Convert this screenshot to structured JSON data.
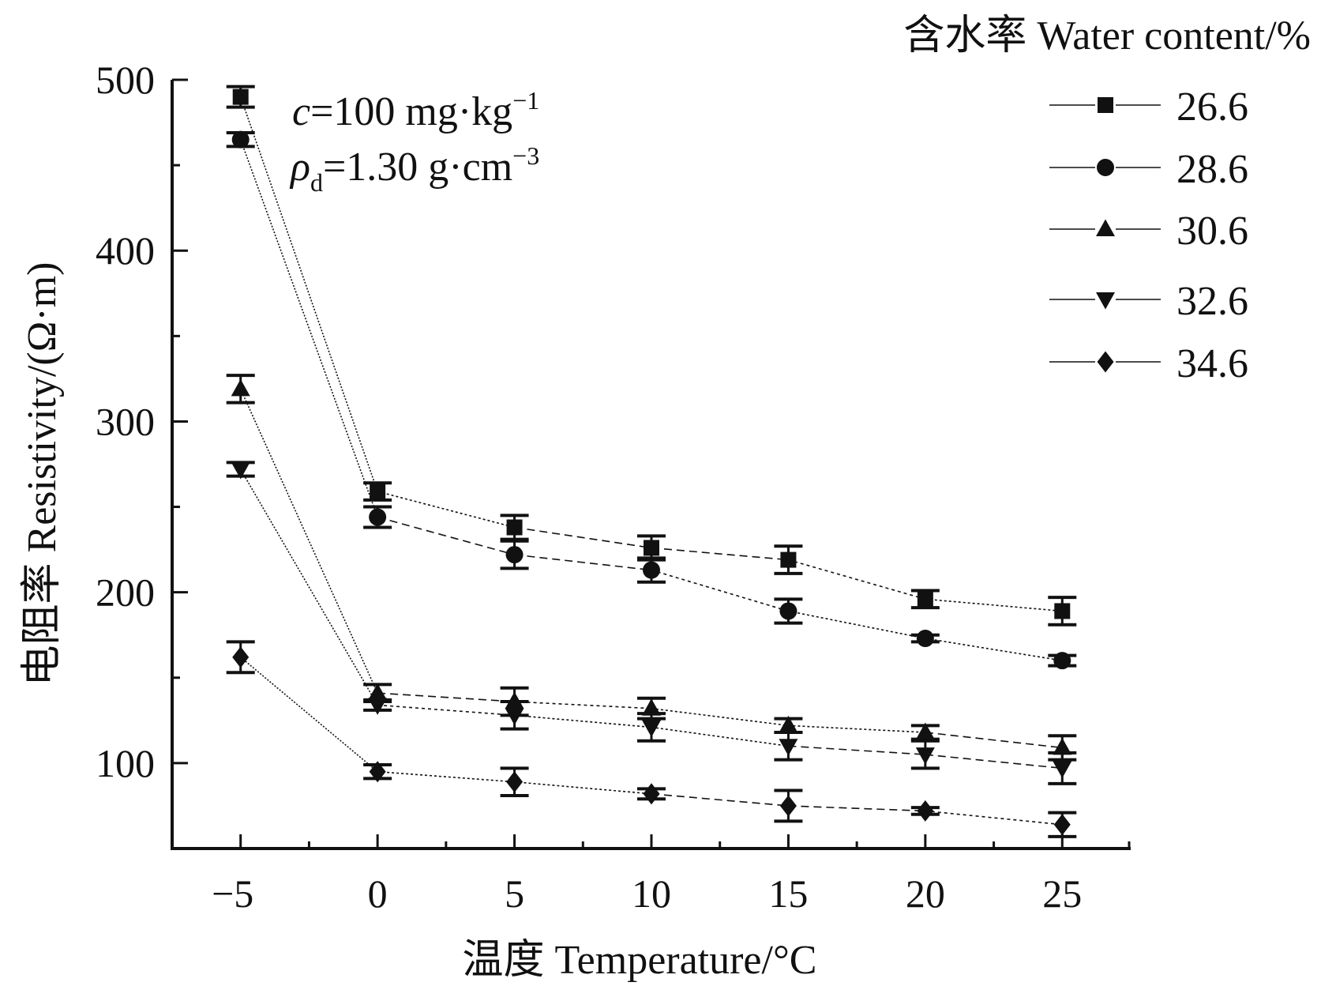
{
  "chart_data": {
    "type": "line",
    "title": "",
    "xlabel": "温度 Temperature/°C",
    "ylabel": "电阻率 Resistivity/(Ω·m)",
    "xlim": [
      -7.5,
      27.5
    ],
    "ylim": [
      50,
      500
    ],
    "x": [
      -5,
      0,
      5,
      10,
      15,
      20,
      25
    ],
    "x_ticks": [
      -5,
      0,
      5,
      10,
      15,
      20,
      25
    ],
    "x_tick_labels": [
      "−5",
      "0",
      "5",
      "10",
      "15",
      "20",
      "25"
    ],
    "y_ticks": [
      100,
      200,
      300,
      400,
      500
    ],
    "y_tick_labels": [
      "100",
      "200",
      "300",
      "400",
      "500"
    ],
    "grid": false,
    "legend": {
      "title": "含水率 Water content/%",
      "placement": "top-right"
    },
    "annotations": {
      "line1": {
        "var": "c",
        "text": "=100 mg·kg",
        "sup": "−1"
      },
      "line2": {
        "var": "ρ",
        "sub": "d",
        "text": "=1.30 g·cm",
        "sup": "−3"
      }
    },
    "series": [
      {
        "name": "26.6",
        "marker": "square",
        "values": [
          490,
          259,
          238,
          226,
          219,
          196,
          189
        ],
        "errors": [
          6,
          5,
          7,
          7,
          8,
          5,
          8
        ]
      },
      {
        "name": "28.6",
        "marker": "circle",
        "values": [
          465,
          244,
          222,
          213,
          189,
          173,
          160
        ],
        "errors": [
          4,
          6,
          8,
          7,
          7,
          2,
          3
        ]
      },
      {
        "name": "30.6",
        "marker": "triangle-up",
        "values": [
          319,
          141,
          136,
          132,
          122,
          118,
          109
        ],
        "errors": [
          8,
          5,
          8,
          6,
          4,
          4,
          7
        ]
      },
      {
        "name": "32.6",
        "marker": "triangle-down",
        "values": [
          272,
          134,
          128,
          121,
          110,
          105,
          97
        ],
        "errors": [
          4,
          3,
          8,
          8,
          8,
          8,
          9
        ]
      },
      {
        "name": "34.6",
        "marker": "diamond",
        "values": [
          162,
          95,
          89,
          82,
          75,
          72,
          64
        ],
        "errors": [
          9,
          4,
          8,
          3,
          9,
          2,
          7
        ]
      }
    ],
    "colors": {
      "ink": "#111111",
      "background": "#ffffff"
    }
  }
}
